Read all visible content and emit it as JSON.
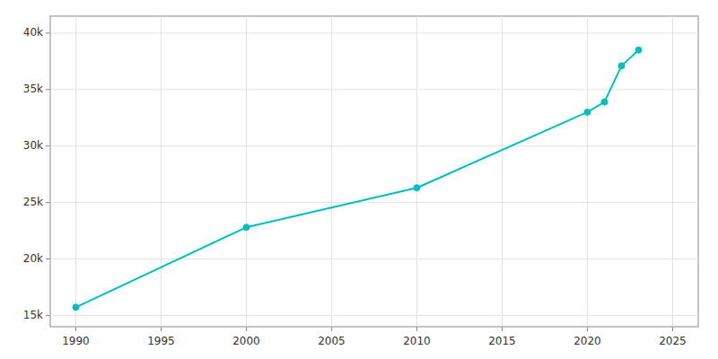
{
  "chart_data": {
    "type": "line",
    "x": [
      1990,
      2000,
      2010,
      2020,
      2021,
      2022,
      2023
    ],
    "values": [
      15722,
      22800,
      26300,
      33000,
      33900,
      37100,
      38500
    ],
    "color": "#00BFBF",
    "marker": "circle",
    "xlim": [
      1988.5,
      2026.5
    ],
    "xticks": [
      1990,
      1995,
      2000,
      2005,
      2010,
      2015,
      2020,
      2025
    ],
    "ylim": [
      14000,
      41500
    ],
    "yticks": [
      {
        "value": 15000,
        "label": "15k"
      },
      {
        "value": 20000,
        "label": "20k"
      },
      {
        "value": 25000,
        "label": "25k"
      },
      {
        "value": 30000,
        "label": "30k"
      },
      {
        "value": 35000,
        "label": "35k"
      },
      {
        "value": 40000,
        "label": "40k"
      }
    ],
    "grid": true
  }
}
